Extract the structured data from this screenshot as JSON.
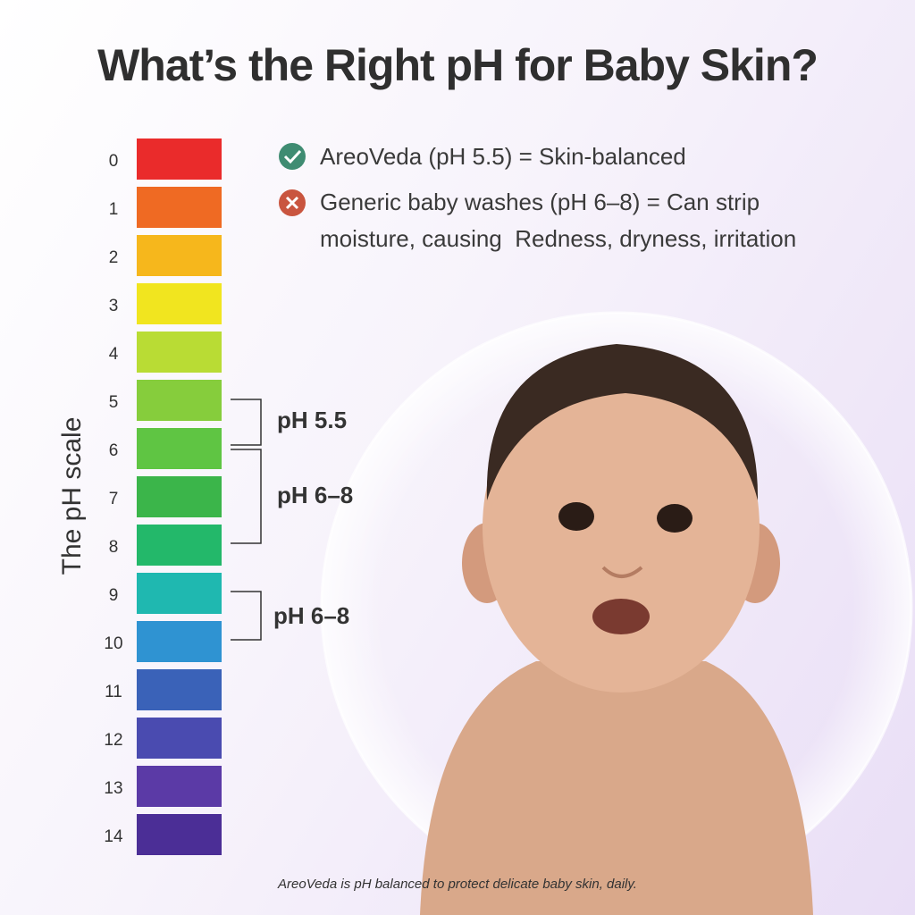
{
  "title": "What’s the Right pH for Baby Skin?",
  "scale": {
    "axis_label": "The pH scale",
    "levels": [
      {
        "label": "0",
        "color": "#ea2b2b"
      },
      {
        "label": "1",
        "color": "#ef6a23"
      },
      {
        "label": "2",
        "color": "#f6b71c"
      },
      {
        "label": "3",
        "color": "#f1e51f"
      },
      {
        "label": "4",
        "color": "#b9dc34"
      },
      {
        "label": "5",
        "color": "#86cd3c"
      },
      {
        "label": "6",
        "color": "#5fc543"
      },
      {
        "label": "7",
        "color": "#3bb54a"
      },
      {
        "label": "8",
        "color": "#23b86a"
      },
      {
        "label": "9",
        "color": "#1fb8b0"
      },
      {
        "label": "10",
        "color": "#2f93d2"
      },
      {
        "label": "11",
        "color": "#3a62b8"
      },
      {
        "label": "12",
        "color": "#4a4bb0"
      },
      {
        "label": "13",
        "color": "#5b3aa6"
      },
      {
        "label": "14",
        "color": "#4b2e96"
      }
    ]
  },
  "brackets": [
    {
      "label": "pH 5.5"
    },
    {
      "label": "pH 6–8"
    },
    {
      "label": "pH 6–8"
    }
  ],
  "points": [
    {
      "text": "AreoVeda (pH 5.5) = Skin-balanced"
    },
    {
      "text": "Generic baby washes (pH 6–8) = Can strip moisture, causing  Redness, dryness, irritation"
    }
  ],
  "footer": "AreoVeda is pH balanced to protect delicate baby skin, daily."
}
